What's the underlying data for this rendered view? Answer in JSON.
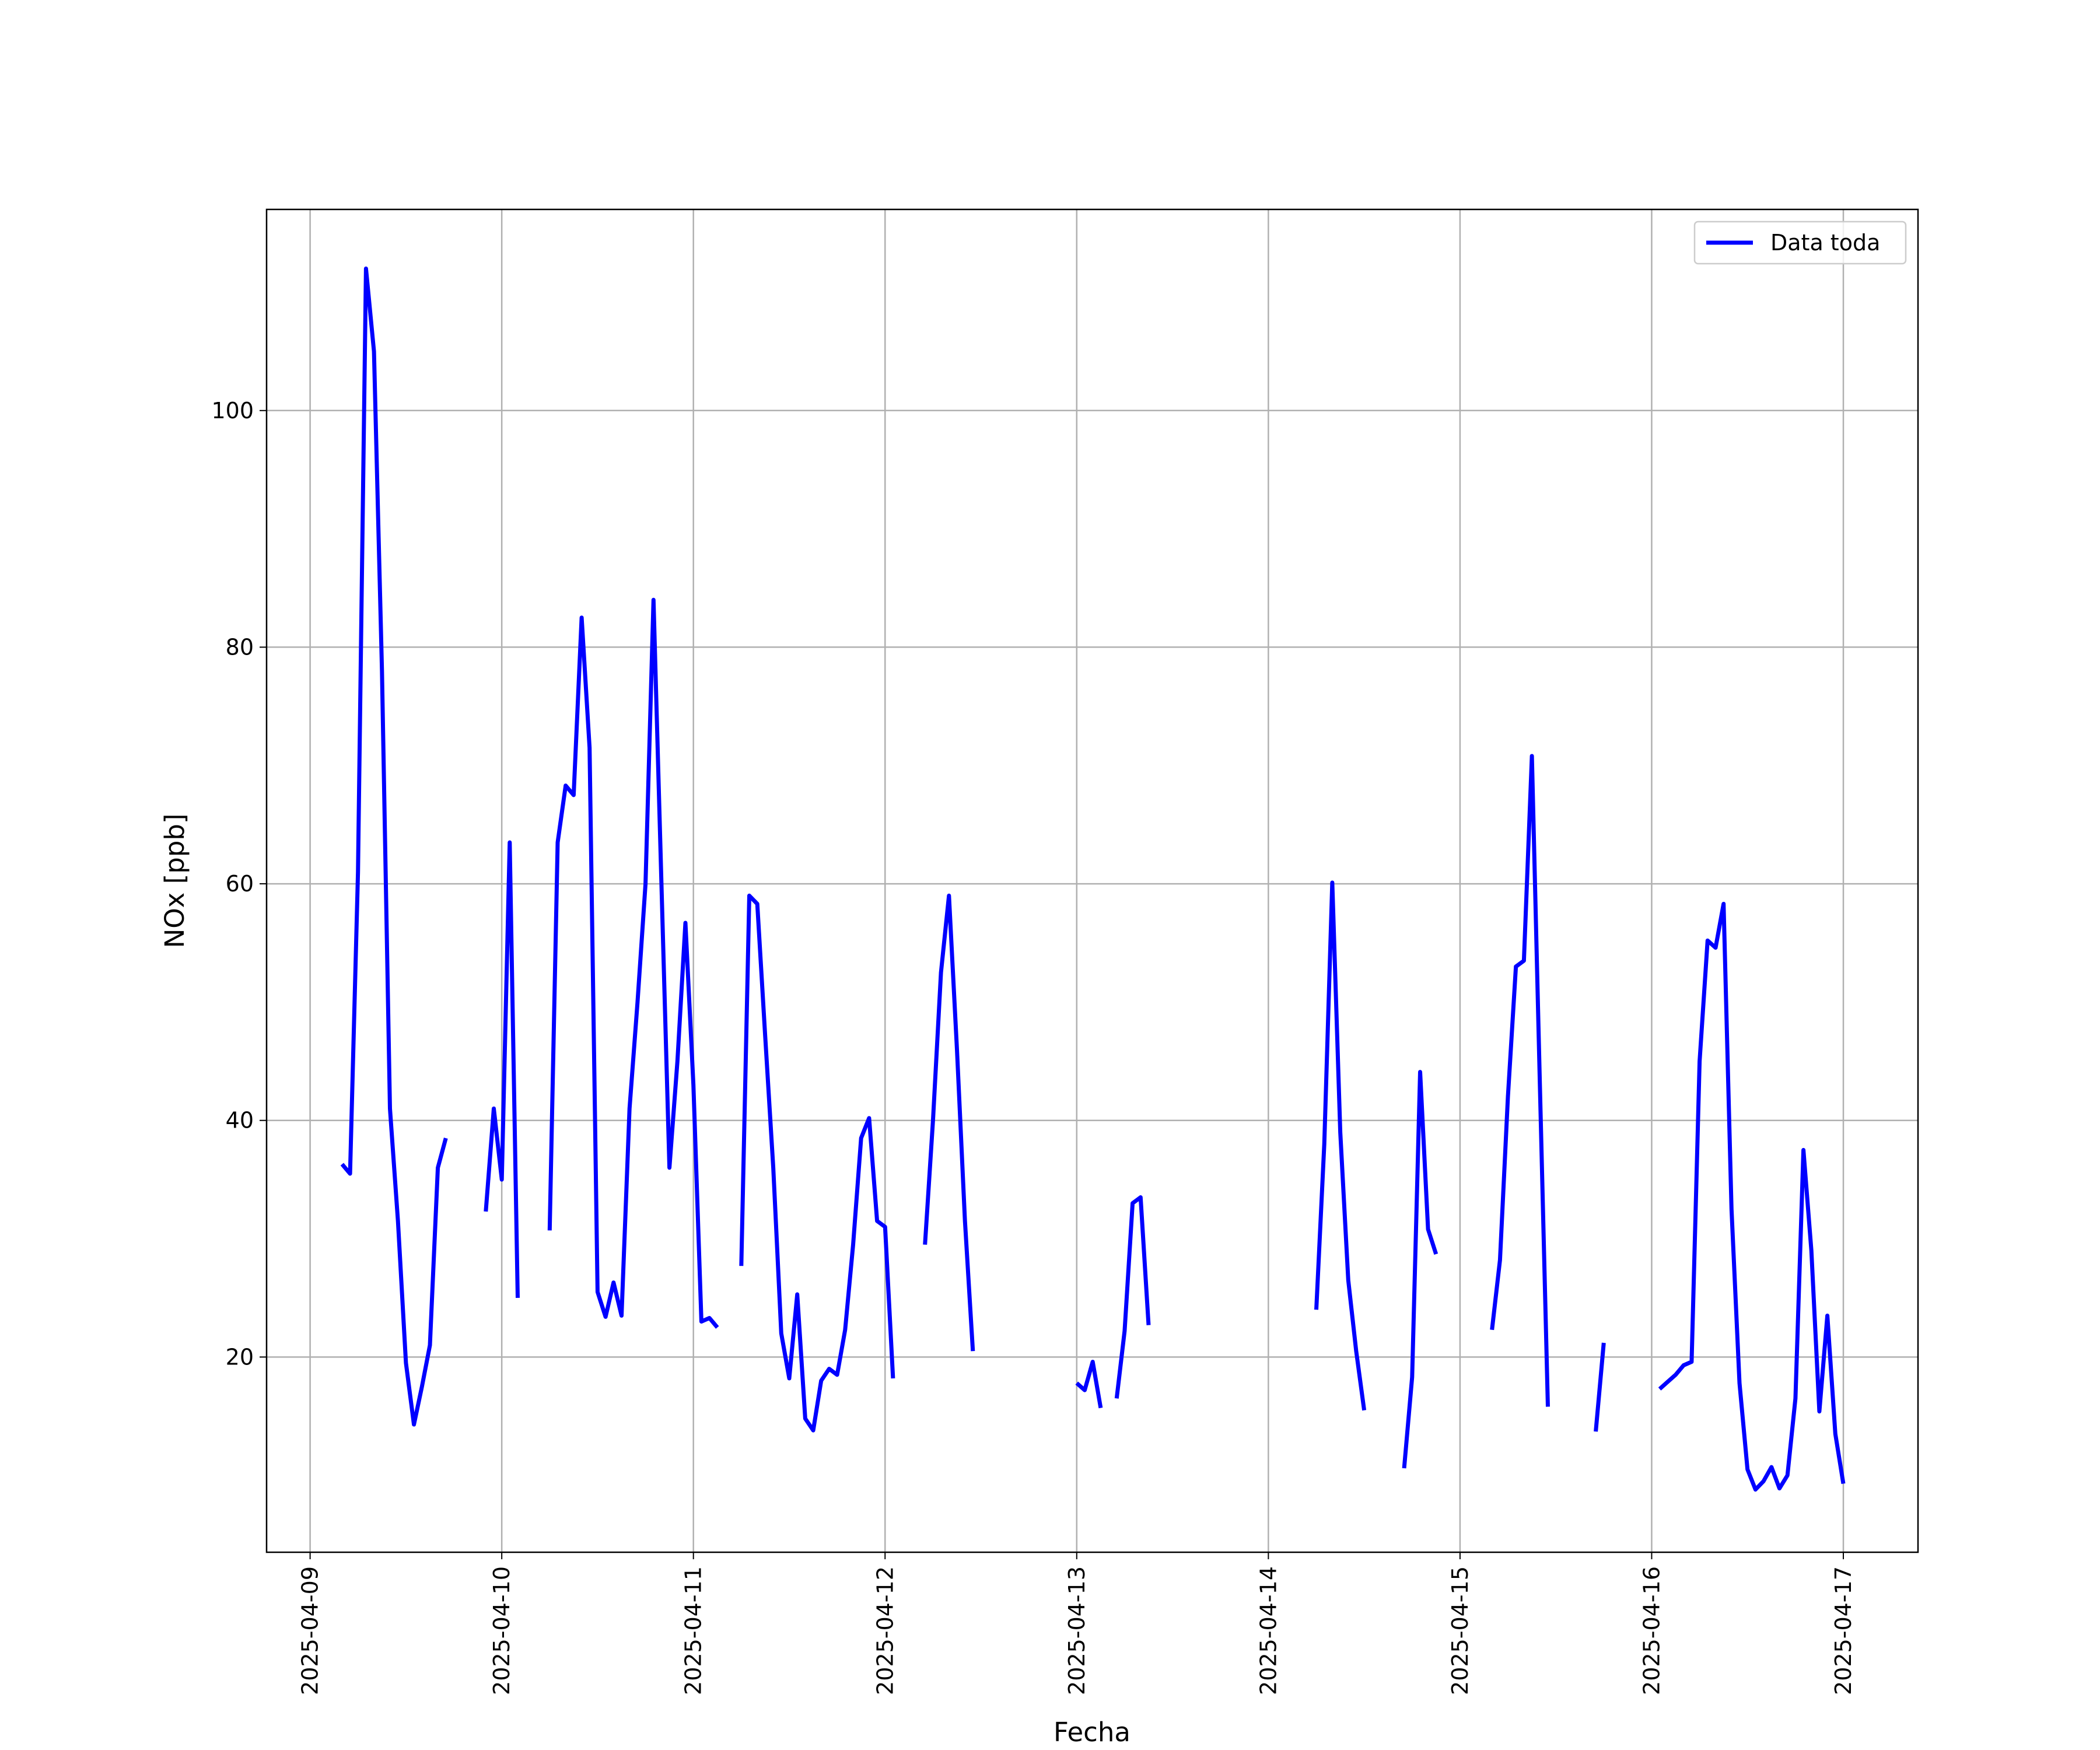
{
  "chart_data": {
    "type": "line",
    "xlabel": "Fecha",
    "ylabel": "NOx [ppb]",
    "x": [
      "2025-04-09 04:00",
      "2025-04-09 05:00",
      "2025-04-09 06:00",
      "2025-04-09 07:00",
      "2025-04-09 08:00",
      "2025-04-09 09:00",
      "2025-04-09 10:00",
      "2025-04-09 11:00",
      "2025-04-09 12:00",
      "2025-04-09 13:00",
      "2025-04-09 14:00",
      "2025-04-09 15:00",
      "2025-04-09 16:00",
      "2025-04-09 17:00",
      "2025-04-09 18:00",
      "2025-04-09 22:00",
      "2025-04-09 23:00",
      "2025-04-10 00:00",
      "2025-04-10 01:00",
      "2025-04-10 02:00",
      "2025-04-10 03:00",
      "2025-04-10 06:00",
      "2025-04-10 07:00",
      "2025-04-10 08:00",
      "2025-04-10 09:00",
      "2025-04-10 10:00",
      "2025-04-10 11:00",
      "2025-04-10 12:00",
      "2025-04-10 13:00",
      "2025-04-10 14:00",
      "2025-04-10 15:00",
      "2025-04-10 16:00",
      "2025-04-10 17:00",
      "2025-04-10 18:00",
      "2025-04-10 19:00",
      "2025-04-10 20:00",
      "2025-04-10 21:00",
      "2025-04-10 22:00",
      "2025-04-10 23:00",
      "2025-04-11 00:00",
      "2025-04-11 01:00",
      "2025-04-11 02:00",
      "2025-04-11 03:00",
      "2025-04-11 04:00",
      "2025-04-11 06:00",
      "2025-04-11 07:00",
      "2025-04-11 08:00",
      "2025-04-11 09:00",
      "2025-04-11 10:00",
      "2025-04-11 11:00",
      "2025-04-11 12:00",
      "2025-04-11 13:00",
      "2025-04-11 14:00",
      "2025-04-11 15:00",
      "2025-04-11 16:00",
      "2025-04-11 17:00",
      "2025-04-11 18:00",
      "2025-04-11 19:00",
      "2025-04-11 20:00",
      "2025-04-11 21:00",
      "2025-04-11 22:00",
      "2025-04-11 23:00",
      "2025-04-12 00:00",
      "2025-04-12 01:00",
      "2025-04-12 02:00",
      "2025-04-12 05:00",
      "2025-04-12 06:00",
      "2025-04-12 07:00",
      "2025-04-12 08:00",
      "2025-04-12 09:00",
      "2025-04-12 10:00",
      "2025-04-12 11:00",
      "2025-04-12 12:00",
      "2025-04-13 00:00",
      "2025-04-13 01:00",
      "2025-04-13 02:00",
      "2025-04-13 03:00",
      "2025-04-13 04:00",
      "2025-04-13 05:00",
      "2025-04-13 06:00",
      "2025-04-13 07:00",
      "2025-04-13 08:00",
      "2025-04-13 09:00",
      "2025-04-13 10:00",
      "2025-04-14 06:00",
      "2025-04-14 07:00",
      "2025-04-14 08:00",
      "2025-04-14 09:00",
      "2025-04-14 10:00",
      "2025-04-14 11:00",
      "2025-04-14 12:00",
      "2025-04-14 13:00",
      "2025-04-14 17:00",
      "2025-04-14 18:00",
      "2025-04-14 19:00",
      "2025-04-14 20:00",
      "2025-04-14 21:00",
      "2025-04-14 22:00",
      "2025-04-15 04:00",
      "2025-04-15 05:00",
      "2025-04-15 06:00",
      "2025-04-15 07:00",
      "2025-04-15 08:00",
      "2025-04-15 09:00",
      "2025-04-15 10:00",
      "2025-04-15 11:00",
      "2025-04-15 12:00",
      "2025-04-15 17:00",
      "2025-04-15 18:00",
      "2025-04-15 19:00",
      "2025-04-16 01:00",
      "2025-04-16 02:00",
      "2025-04-16 03:00",
      "2025-04-16 04:00",
      "2025-04-16 05:00",
      "2025-04-16 06:00",
      "2025-04-16 07:00",
      "2025-04-16 08:00",
      "2025-04-16 09:00",
      "2025-04-16 10:00",
      "2025-04-16 11:00",
      "2025-04-16 12:00",
      "2025-04-16 13:00",
      "2025-04-16 14:00",
      "2025-04-16 15:00",
      "2025-04-16 16:00",
      "2025-04-16 17:00",
      "2025-04-16 18:00",
      "2025-04-16 19:00",
      "2025-04-16 20:00",
      "2025-04-16 21:00",
      "2025-04-16 22:00",
      "2025-04-16 23:00",
      "2025-04-17 00:00"
    ],
    "series": [
      {
        "name": "Data toda",
        "color": "#0000ff",
        "values": [
          36.3,
          35.5,
          61,
          112,
          105,
          78,
          41,
          31.5,
          19.5,
          14.3,
          17.5,
          21,
          36,
          38.5,
          null,
          32.3,
          41,
          35,
          63.5,
          25,
          null,
          30.7,
          63.5,
          68.3,
          67.5,
          82.5,
          71.5,
          25.5,
          23.4,
          26.3,
          23.5,
          41,
          50,
          60,
          84,
          60,
          36,
          45,
          56.7,
          43,
          23,
          23.3,
          22.5,
          null,
          27.7,
          59,
          58.3,
          47,
          36,
          22,
          18.2,
          25.3,
          14.8,
          13.8,
          18,
          19,
          18.5,
          22.3,
          29.5,
          38.5,
          40.2,
          31.5,
          31,
          18.2,
          null,
          29.5,
          40,
          52.5,
          59,
          46,
          31.5,
          20.5,
          null,
          17.8,
          17.2,
          19.6,
          15.7,
          null,
          16.5,
          22.2,
          33,
          33.5,
          22.7,
          null,
          24,
          38,
          60.1,
          39,
          26.5,
          20.5,
          15.5,
          null,
          10.6,
          18.3,
          44.1,
          30.8,
          28.7,
          null,
          22.3,
          28.2,
          42,
          53,
          53.5,
          70.8,
          43,
          15.8,
          null,
          13.7,
          21.2,
          null,
          17.3,
          17.9,
          18.5,
          19.3,
          19.6,
          45,
          55.2,
          54.6,
          58.3,
          32.5,
          17.8,
          10.5,
          8.8,
          9.5,
          10.7,
          8.9,
          10,
          16.5,
          37.5,
          29,
          15.4,
          23.5,
          13.5,
          9.3
        ]
      }
    ],
    "xlim": [
      "2025-04-08 18:33",
      "2025-04-17 09:21"
    ],
    "xticks": [
      "2025-04-09",
      "2025-04-10",
      "2025-04-11",
      "2025-04-12",
      "2025-04-13",
      "2025-04-14",
      "2025-04-15",
      "2025-04-16",
      "2025-04-17"
    ],
    "ylim": [
      3.5,
      117
    ],
    "yticks": [
      20,
      40,
      60,
      80,
      100
    ],
    "grid": true,
    "legend": "upper right"
  }
}
